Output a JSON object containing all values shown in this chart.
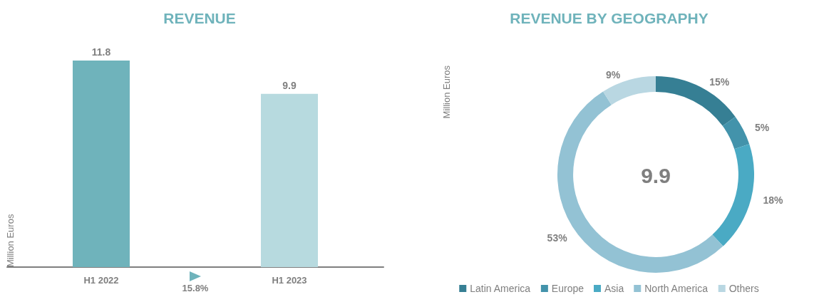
{
  "chart_data": [
    {
      "type": "bar",
      "title": "REVENUE",
      "ylabel": "Million Euros",
      "categories": [
        "H1 2022",
        "H1 2023"
      ],
      "values": [
        11.8,
        9.9
      ],
      "colors": [
        "#6fb3bb",
        "#b7dadf"
      ],
      "data_labels": true,
      "annotations": [
        "15.8%"
      ]
    },
    {
      "type": "donut",
      "title": "REVENUE BY GEOGRAPHY",
      "ylabel": "Million Euros",
      "categories": [
        "Latin America",
        "Europe",
        "Asia",
        "North America",
        "Others"
      ],
      "values": [
        15,
        5,
        18,
        53,
        9
      ],
      "colors": [
        "#367f94",
        "#4393ab",
        "#4aaac4",
        "#93c2d4",
        "#b9d7e2"
      ],
      "value_labels": [
        "15%",
        "5%",
        "18%",
        "53%",
        "9%"
      ],
      "annotations": [
        "9.9"
      ],
      "legend": "bottom"
    }
  ]
}
